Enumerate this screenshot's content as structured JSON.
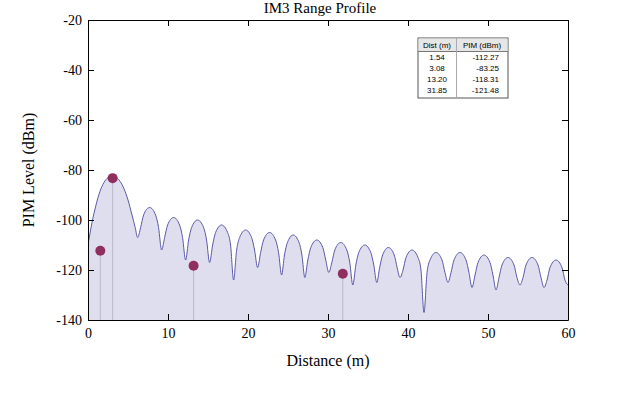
{
  "chart_data": {
    "type": "area",
    "title": "IM3 Range Profile",
    "x_label": "Distance (m)",
    "y_label": "PIM Level (dBm)",
    "xlim": [
      0,
      60
    ],
    "xticks": [
      0,
      10,
      20,
      30,
      40,
      50,
      60
    ],
    "ylim": [
      -140,
      -20
    ],
    "yticks": [
      -140,
      -120,
      -100,
      -80,
      -60,
      -40,
      -20
    ],
    "grid": false,
    "legend": "upper right",
    "table": {
      "columns": [
        "Dist (m)",
        "PIM (dBm)"
      ]
    },
    "series": [
      {
        "type": "area",
        "color": "#5a5aa8",
        "x": [
          0,
          0.5,
          1,
          1.5,
          2,
          2.5,
          3,
          3.5,
          4,
          4.5,
          5,
          5.5,
          5.9,
          6.2,
          6.58,
          6.95,
          7.7,
          8.45,
          8.82,
          9.2,
          9.58,
          9.95,
          10.7,
          11.45,
          11.82,
          12.2,
          12.58,
          12.95,
          13.7,
          14.45,
          14.82,
          15.2,
          15.58,
          15.95,
          16.7,
          17.45,
          17.82,
          18.2,
          18.58,
          18.95,
          19.7,
          20.45,
          20.82,
          21.2,
          21.58,
          21.95,
          22.7,
          23.45,
          23.82,
          24.2,
          24.56,
          24.93,
          25.65,
          26.38,
          26.74,
          27.1,
          27.48,
          27.85,
          28.6,
          29.35,
          29.72,
          30.1,
          30.48,
          30.85,
          31.6,
          32.35,
          32.72,
          33.1,
          33.48,
          33.85,
          34.6,
          35.35,
          35.72,
          36.1,
          36.46,
          36.83,
          37.55,
          38.28,
          38.64,
          39,
          39.38,
          39.75,
          40.5,
          41.25,
          41.62,
          42,
          42.38,
          42.75,
          43.5,
          44.25,
          44.62,
          45,
          45.38,
          45.75,
          46.5,
          47.25,
          47.62,
          48,
          48.38,
          48.75,
          49.5,
          50.25,
          50.62,
          51,
          51.38,
          51.75,
          52.5,
          53.25,
          53.62,
          54,
          54.38,
          54.75,
          55.5,
          56.25,
          56.62,
          57,
          57.38,
          57.75,
          58.5,
          59.25,
          59.62,
          60
        ],
        "values": [
          -110,
          -101,
          -94,
          -88.5,
          -85,
          -83,
          -82.3,
          -82.8,
          -84.5,
          -87.5,
          -92,
          -98,
          -103,
          -107,
          -103,
          -98,
          -95,
          -98,
          -103,
          -112,
          -107,
          -102,
          -99,
          -102,
          -107,
          -116,
          -108,
          -103,
          -100,
          -103,
          -108,
          -117,
          -110,
          -105,
          -102,
          -105,
          -110,
          -124,
          -112,
          -107,
          -104,
          -107,
          -112,
          -119,
          -113,
          -108,
          -105,
          -108,
          -113,
          -122,
          -114,
          -109,
          -106,
          -109,
          -114,
          -123,
          -116,
          -111,
          -108,
          -111,
          -116,
          -121,
          -117,
          -112,
          -109,
          -112,
          -117,
          -126,
          -118,
          -113,
          -110,
          -113,
          -118,
          -125,
          -119,
          -114,
          -111,
          -114,
          -119,
          -123,
          -120,
          -115,
          -112,
          -115,
          -120,
          -137,
          -121,
          -116,
          -113,
          -116,
          -121,
          -125,
          -121,
          -116,
          -113,
          -116,
          -121,
          -127,
          -122,
          -117,
          -114,
          -117,
          -122,
          -128,
          -123,
          -118,
          -115,
          -118,
          -123,
          -126,
          -123,
          -118,
          -115,
          -118,
          -123,
          -127,
          -124,
          -119,
          -116,
          -119,
          -124,
          -126
        ]
      },
      {
        "type": "scatter",
        "color": "#8e2f5e",
        "marker": "circle",
        "x": [
          1.54,
          3.08,
          13.2,
          31.85
        ],
        "x_labels": [
          "1.54",
          "3.08",
          "13.20",
          "31.85"
        ],
        "values": [
          -112.27,
          -83.25,
          -118.31,
          -121.48
        ],
        "value_labels": [
          "-112.27",
          "-83.25",
          "-118.31",
          "-121.48"
        ]
      }
    ]
  }
}
